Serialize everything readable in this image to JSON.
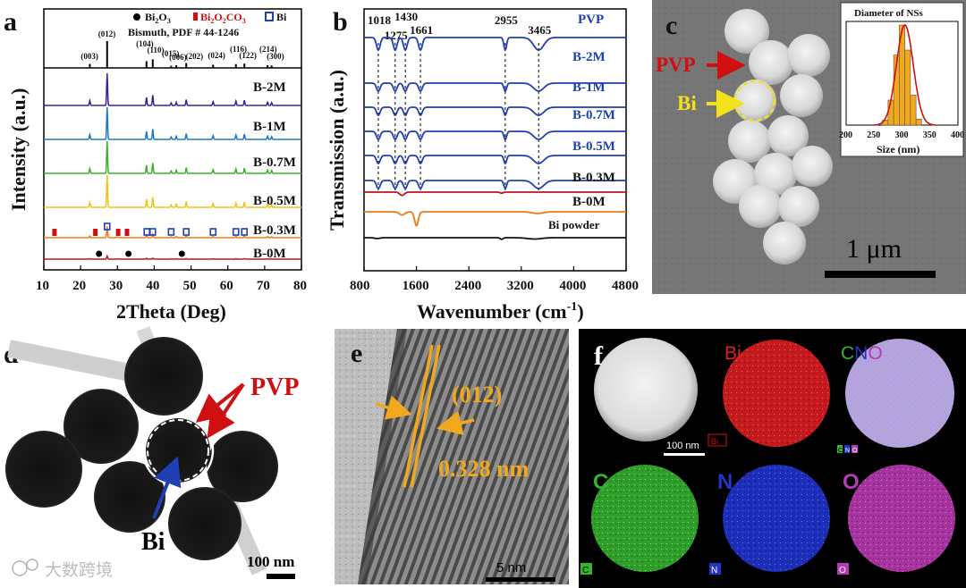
{
  "panel_labels": {
    "a": "a",
    "b": "b",
    "c": "c",
    "d": "d",
    "e": "e",
    "f": "f"
  },
  "colors": {
    "bi2o3": "#000000",
    "bi2o2co3": "#d01010",
    "bi": "#1f3fb5",
    "pvp": "#d01010",
    "bi_arrow": "#f2e21a",
    "lattice": "#f2a81d"
  },
  "panel_a": {
    "chart_data": {
      "type": "line",
      "title": "",
      "xlabel": "2Theta (Deg)",
      "ylabel": "Intensity (a.u.)",
      "xlim": [
        10,
        80
      ],
      "xticks": [
        "10",
        "20",
        "30",
        "40",
        "50",
        "60",
        "70",
        "80"
      ],
      "legend": {
        "bi2o3": "Bi2O3",
        "bi2o2co3": "Bi2O2CO3",
        "bi": "Bi"
      },
      "reference": "Bismuth, PDF # 44-1246",
      "hkl": [
        "(003)",
        "(012)",
        "(104)",
        "(110)",
        "(015)",
        "(006)",
        "(202)",
        "(024)",
        "(116)",
        "(122)",
        "(214)",
        "(300)"
      ],
      "ref_peaks": [
        22.5,
        27.2,
        37.9,
        39.6,
        44.6,
        46.0,
        48.7,
        56.0,
        62.2,
        64.5,
        70.8,
        71.9
      ],
      "series": [
        {
          "name": "B-2M",
          "color": "#3b1f9e"
        },
        {
          "name": "B-1M",
          "color": "#1e78c8"
        },
        {
          "name": "B-0.7M",
          "color": "#3cb02c"
        },
        {
          "name": "B-0.5M",
          "color": "#f0c419"
        },
        {
          "name": "B-0.3M",
          "color": "#f07a12"
        },
        {
          "name": "B-0M",
          "color": "#c0141b"
        }
      ]
    }
  },
  "panel_b": {
    "chart_data": {
      "type": "line",
      "xlabel": "Wavenumber (cm",
      "xlabel_sup": "-1",
      "xlabel_end": ")",
      "ylabel": "Transmission (a.u.)",
      "xlim": [
        800,
        4800
      ],
      "xticks": [
        "800",
        "1600",
        "2400",
        "3200",
        "4000",
        "4800"
      ],
      "peak_labels": [
        "1018",
        "1275",
        "1430",
        "1661",
        "2955",
        "3465"
      ],
      "peak_positions": [
        1018,
        1275,
        1430,
        1661,
        2955,
        3465
      ],
      "series": [
        {
          "name": "PVP",
          "color": "#1f3fb5"
        },
        {
          "name": "B-2M",
          "color": "#1f3fb5"
        },
        {
          "name": "B-1M",
          "color": "#1f3fb5"
        },
        {
          "name": "B-0.7M",
          "color": "#1f3fb5"
        },
        {
          "name": "B-0.5M",
          "color": "#1f3fb5"
        },
        {
          "name": "B-0.3M",
          "color": "#1f3fb5"
        },
        {
          "name": "B-0M",
          "color": "#c0141b"
        },
        {
          "name": "Bi powder",
          "color": "#f07a12"
        },
        {
          "name": "",
          "color": "#111111"
        }
      ]
    }
  },
  "panel_c": {
    "pvp": "PVP",
    "bi": "Bi",
    "scale": "1 μm",
    "inset": {
      "chart_data": {
        "type": "bar",
        "title": "Diameter of NSs",
        "xlabel": "Size (nm)",
        "xlim": [
          200,
          400
        ],
        "xticks": [
          "200",
          "250",
          "300",
          "350",
          "400"
        ],
        "mean": 305,
        "sd": 15,
        "bins": [
          270,
          280,
          290,
          300,
          310,
          320,
          330
        ],
        "values": [
          0.05,
          0.25,
          0.7,
          1.0,
          0.75,
          0.3,
          0.06
        ]
      }
    }
  },
  "panel_d": {
    "pvp": "PVP",
    "bi": "Bi",
    "scale": "100 nm"
  },
  "panel_e": {
    "plane": "(012)",
    "spacing": "0.328 nm",
    "scale": "5 nm"
  },
  "panel_f": {
    "maps": [
      {
        "title": "",
        "tag": "Bi",
        "scale": "100 nm",
        "color": "#ffffff"
      },
      {
        "title": "Bi",
        "tag": "Bi",
        "color": "#c8191c"
      },
      {
        "title_c": "C",
        "title_n": "N",
        "title_o": "O",
        "tag_c": "C",
        "tag_n": "N",
        "tag_o": "O",
        "color": "#9966cc"
      },
      {
        "title": "C",
        "tag": "C",
        "color": "#35b32f"
      },
      {
        "title": "N",
        "tag": "N",
        "color": "#2235c8"
      },
      {
        "title": "O",
        "tag": "O",
        "color": "#b43bb4"
      }
    ]
  },
  "watermark": "大数跨境"
}
